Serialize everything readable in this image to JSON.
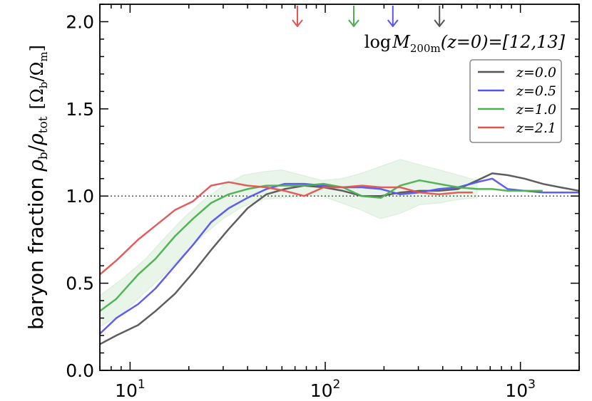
{
  "chart_data": {
    "type": "line",
    "title": "",
    "annotation": {
      "prefix": "log",
      "var": "M",
      "sub": "200m",
      "paren": "(z=0)=[12,13]"
    },
    "ylabel": {
      "text": "baryon fraction",
      "math_main": "ρ",
      "sub_b": "b",
      "slash": "/",
      "math_tot": "ρ",
      "sub_tot": "tot",
      "unit_open": "[Ω",
      "unit_b": "b",
      "unit_slash": "/Ω",
      "unit_m": "m",
      "unit_close": "]"
    },
    "xscale": "log",
    "xlim": [
      7,
      2000
    ],
    "ylim": [
      0,
      2.1
    ],
    "xticks": [
      {
        "value": 10,
        "base": "10",
        "exp": "1"
      },
      {
        "value": 100,
        "base": "10",
        "exp": "2"
      },
      {
        "value": 1000,
        "base": "10",
        "exp": "3"
      }
    ],
    "yticks": [
      {
        "value": 0.0,
        "label": "0.0"
      },
      {
        "value": 0.5,
        "label": "0.5"
      },
      {
        "value": 1.0,
        "label": "1.0"
      },
      {
        "value": 1.5,
        "label": "1.5"
      },
      {
        "value": 2.0,
        "label": "2.0"
      }
    ],
    "reference_line": {
      "y": 1.0,
      "style": "dotted",
      "color": "#555555"
    },
    "band": {
      "label": "z=1.0 scatter",
      "color": "#4caf50",
      "x": [
        7,
        9,
        12,
        15,
        19,
        24,
        30,
        38,
        48,
        60,
        76,
        96,
        121,
        152,
        192,
        242,
        305,
        384,
        484,
        600
      ],
      "lower": [
        0.25,
        0.32,
        0.45,
        0.55,
        0.67,
        0.78,
        0.87,
        0.94,
        0.98,
        0.99,
        1.0,
        1.0,
        0.96,
        0.92,
        0.87,
        0.9,
        0.95,
        0.96,
        0.98,
        0.99
      ],
      "upper": [
        0.43,
        0.52,
        0.64,
        0.76,
        0.88,
        0.98,
        1.06,
        1.12,
        1.14,
        1.15,
        1.12,
        1.09,
        1.1,
        1.13,
        1.17,
        1.21,
        1.18,
        1.15,
        1.12,
        1.09
      ]
    },
    "series": [
      {
        "name": "z=0.0",
        "color": "#555555",
        "x": [
          7,
          8.5,
          11,
          13.5,
          17,
          21,
          26,
          32,
          40,
          50,
          62,
          78,
          98,
          123,
          154,
          193,
          242,
          304,
          381,
          479,
          602,
          717,
          860,
          1050,
          1300,
          1600,
          2000
        ],
        "values": [
          0.15,
          0.2,
          0.26,
          0.34,
          0.44,
          0.56,
          0.69,
          0.81,
          0.93,
          1.01,
          1.04,
          1.06,
          1.05,
          1.03,
          1.0,
          1.0,
          1.02,
          1.03,
          1.03,
          1.04,
          1.09,
          1.13,
          1.12,
          1.1,
          1.07,
          1.05,
          1.03
        ]
      },
      {
        "name": "z=0.5",
        "color": "#5555ee",
        "x": [
          7,
          8.5,
          11,
          13.5,
          17,
          21,
          26,
          32,
          40,
          50,
          62,
          78,
          98,
          123,
          154,
          193,
          242,
          304,
          381,
          479,
          602,
          717,
          860,
          1050,
          1300,
          1600,
          2000
        ],
        "values": [
          0.21,
          0.3,
          0.38,
          0.47,
          0.6,
          0.72,
          0.85,
          0.93,
          0.99,
          1.04,
          1.07,
          1.07,
          1.06,
          1.05,
          1.05,
          1.04,
          1.01,
          1.02,
          1.04,
          1.05,
          1.08,
          1.1,
          1.04,
          1.03,
          1.02,
          1.02,
          1.02
        ]
      },
      {
        "name": "z=1.0",
        "color": "#4caf50",
        "x": [
          7,
          8.5,
          11,
          13.5,
          17,
          21,
          26,
          32,
          40,
          50,
          62,
          78,
          98,
          123,
          154,
          193,
          242,
          304,
          381,
          479,
          602,
          717,
          860,
          1050,
          1300
        ],
        "values": [
          0.34,
          0.41,
          0.55,
          0.64,
          0.77,
          0.87,
          0.96,
          1.01,
          1.04,
          1.06,
          1.06,
          1.06,
          1.07,
          1.05,
          1.0,
          0.99,
          1.06,
          1.09,
          1.07,
          1.05,
          1.04,
          1.04,
          1.03,
          1.03,
          1.03
        ]
      },
      {
        "name": "z=2.1",
        "color": "#e05555",
        "x": [
          7,
          8.5,
          11,
          13.5,
          17,
          21,
          26,
          32,
          40,
          50,
          62,
          78,
          98,
          123,
          154,
          193,
          242,
          304,
          381,
          479,
          570
        ],
        "values": [
          0.55,
          0.63,
          0.75,
          0.83,
          0.92,
          0.97,
          1.06,
          1.08,
          1.06,
          1.05,
          1.03,
          1.0,
          1.05,
          1.05,
          1.06,
          1.05,
          1.05,
          1.02,
          1.01,
          1.02,
          1.02
        ]
      }
    ],
    "arrows": [
      {
        "series": "z=2.1",
        "x": 72,
        "color": "#e05555"
      },
      {
        "series": "z=1.0",
        "x": 140,
        "color": "#4caf50"
      },
      {
        "series": "z=0.5",
        "x": 222,
        "color": "#5555ee"
      },
      {
        "series": "z=0.0",
        "x": 385,
        "color": "#555555"
      }
    ],
    "legend": {
      "placement": "top-right",
      "items": [
        {
          "label": "z=0.0",
          "color": "#555555"
        },
        {
          "label": "z=0.5",
          "color": "#5555ee"
        },
        {
          "label": "z=1.0",
          "color": "#4caf50"
        },
        {
          "label": "z=2.1",
          "color": "#e05555"
        }
      ]
    }
  }
}
